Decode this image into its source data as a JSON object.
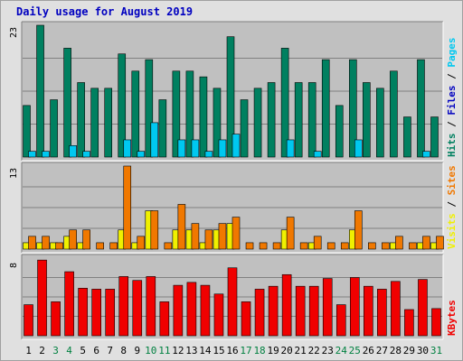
{
  "chart_data": {
    "type": "bar",
    "title": "Daily usage for August 2019",
    "days": [
      "1",
      "2",
      "3",
      "4",
      "5",
      "6",
      "7",
      "8",
      "9",
      "10",
      "11",
      "12",
      "13",
      "14",
      "15",
      "16",
      "17",
      "18",
      "19",
      "20",
      "21",
      "22",
      "23",
      "24",
      "25",
      "26",
      "27",
      "28",
      "29",
      "30",
      "31"
    ],
    "weekend_days": [
      3,
      4,
      10,
      11,
      17,
      18,
      24,
      25,
      31
    ],
    "colors": {
      "hits": "#008060",
      "files": "#00c8f0",
      "pages": "#00c8f0",
      "visits": "#f0f000",
      "sites": "#f07800",
      "kbytes": "#f00000",
      "weekday_label": "#000000",
      "weekend_label": "#008040",
      "title": "#0000c0"
    },
    "panels": [
      {
        "id": "hits",
        "max_label": "23",
        "ymax": 23,
        "series": [
          {
            "name": "Hits",
            "color": "#008060",
            "values": [
              9,
              23,
              10,
              19,
              13,
              12,
              12,
              18,
              15,
              17,
              10,
              15,
              15,
              14,
              12,
              21,
              10,
              12,
              13,
              19,
              13,
              13,
              17,
              9,
              17,
              13,
              12,
              15,
              7,
              17,
              7
            ]
          },
          {
            "name": "Files",
            "color": "#00c8f0",
            "values": [
              1,
              1,
              0,
              2,
              1,
              0,
              0,
              3,
              1,
              6,
              0,
              3,
              3,
              1,
              3,
              4,
              0,
              0,
              0,
              3,
              0,
              1,
              0,
              0,
              3,
              0,
              0,
              0,
              0,
              1,
              0
            ]
          }
        ],
        "legend": [
          {
            "text": "Hits",
            "color": "#008060"
          },
          {
            "text": " / ",
            "color": "#000000"
          },
          {
            "text": "Files",
            "color": "#0000c0"
          },
          {
            "text": " / ",
            "color": "#000000"
          },
          {
            "text": "Pages",
            "color": "#00c8f0"
          }
        ]
      },
      {
        "id": "visits",
        "max_label": "13",
        "ymax": 13,
        "series": [
          {
            "name": "Visits",
            "color": "#f0f000",
            "values": [
              1,
              1,
              1,
              2,
              1,
              0,
              0,
              3,
              1,
              6,
              0,
              3,
              3,
              1,
              3,
              4,
              0,
              0,
              0,
              3,
              0,
              1,
              0,
              0,
              3,
              0,
              0,
              1,
              0,
              1,
              1
            ]
          },
          {
            "name": "Sites",
            "color": "#f07800",
            "values": [
              2,
              2,
              1,
              3,
              3,
              1,
              1,
              13,
              2,
              6,
              1,
              7,
              4,
              3,
              4,
              5,
              1,
              1,
              1,
              5,
              1,
              2,
              1,
              1,
              6,
              1,
              1,
              2,
              1,
              2,
              2
            ]
          }
        ],
        "legend": [
          {
            "text": "Visits",
            "color": "#f0f000"
          },
          {
            "text": " / ",
            "color": "#000000"
          },
          {
            "text": "Sites",
            "color": "#f07800"
          }
        ]
      },
      {
        "id": "kbytes",
        "max_label": "8",
        "ymax": 8,
        "series": [
          {
            "name": "KBytes",
            "color": "#f00000",
            "values": [
              3.2,
              7.8,
              3.5,
              6.6,
              4.9,
              4.8,
              4.8,
              6.1,
              5.7,
              6.1,
              3.5,
              5.2,
              5.5,
              5.2,
              4.3,
              7.0,
              3.5,
              4.8,
              5.1,
              6.3,
              5.1,
              5.1,
              5.9,
              3.2,
              6.0,
              5.1,
              4.8,
              5.6,
              2.7,
              5.8,
              2.8
            ]
          }
        ],
        "legend": [
          {
            "text": "KBytes",
            "color": "#f00000"
          }
        ]
      }
    ]
  }
}
